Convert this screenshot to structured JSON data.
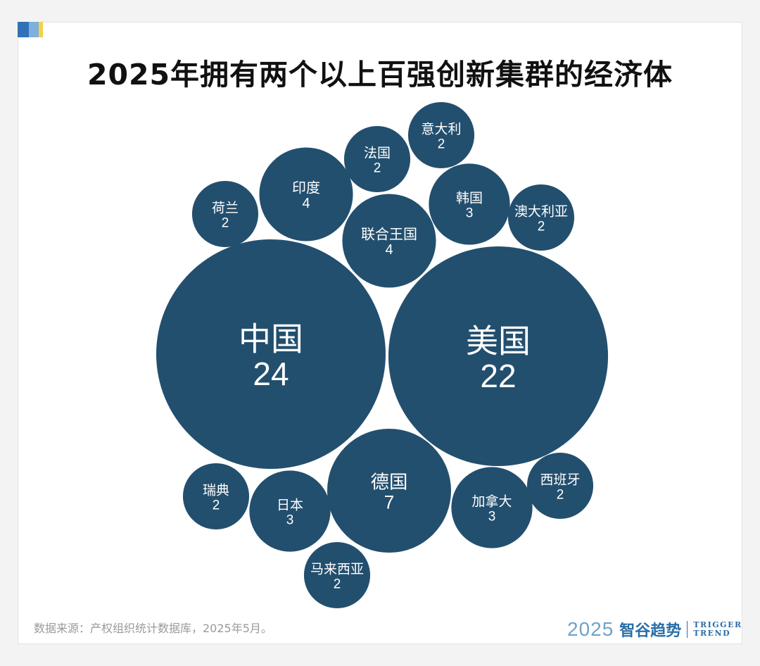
{
  "chart_data": {
    "type": "bubble",
    "title": "2025年拥有两个以上百强创新集群的经济体",
    "categories": [
      "中国",
      "美国",
      "德国",
      "印度",
      "联合王国",
      "韩国",
      "日本",
      "加拿大",
      "法国",
      "意大利",
      "荷兰",
      "澳大利亚",
      "瑞典",
      "西班牙",
      "马来西亚"
    ],
    "values": [
      24,
      22,
      7,
      4,
      4,
      3,
      3,
      3,
      2,
      2,
      2,
      2,
      2,
      2,
      2
    ],
    "bubble_color": "#234f6e",
    "label_color": "#ffffff"
  },
  "source_note": "数据来源：产权组织统计数据库，2025年5月。",
  "brand": {
    "year": "2025",
    "name": "智谷趋势",
    "en_line1": "TRIGGER",
    "en_line2": "TREND"
  }
}
